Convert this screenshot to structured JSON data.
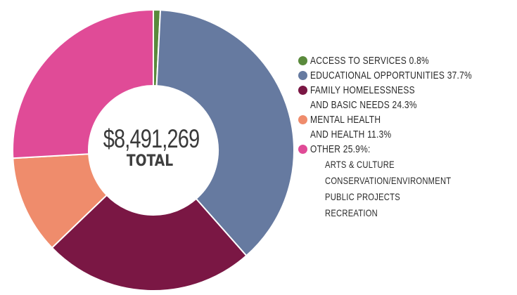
{
  "chart_data": {
    "type": "pie",
    "donut": true,
    "center": {
      "amount": "$8,491,269",
      "label": "TOTAL"
    },
    "slices": [
      {
        "label": "ACCESS TO SERVICES",
        "value": 0.8,
        "color": "#5a8a3c"
      },
      {
        "label": "EDUCATIONAL OPPORTUNITIES",
        "value": 37.7,
        "color": "#667aa0"
      },
      {
        "label": "FAMILY HOMELESSNESS AND BASIC NEEDS",
        "value": 24.3,
        "color": "#7a1744"
      },
      {
        "label": "MENTAL HEALTH AND HEALTH",
        "value": 11.3,
        "color": "#ef8c6c"
      },
      {
        "label": "OTHER",
        "value": 25.9,
        "color": "#e04b97"
      }
    ]
  },
  "legend": {
    "items": [
      {
        "line1": "ACCESS TO SERVICES 0.8%",
        "line2": ""
      },
      {
        "line1": "EDUCATIONAL OPPORTUNITIES 37.7%",
        "line2": ""
      },
      {
        "line1": "FAMILY HOMELESSNESS",
        "line2": "AND BASIC NEEDS 24.3%"
      },
      {
        "line1": "MENTAL HEALTH",
        "line2": "AND HEALTH 11.3%"
      },
      {
        "line1": "OTHER 25.9%:",
        "line2": ""
      }
    ],
    "other_sub": [
      "ARTS & CULTURE",
      "CONSERVATION/ENVIRONMENT",
      "PUBLIC PROJECTS",
      "RECREATION"
    ]
  }
}
